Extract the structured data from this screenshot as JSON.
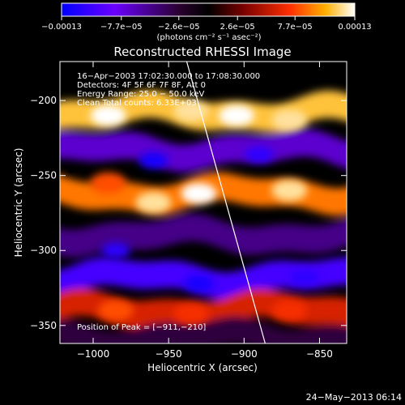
{
  "chart_data": {
    "type": "heatmap",
    "title": "Reconstructed RHESSI Image",
    "xlabel": "Heliocentric X (arcsec)",
    "ylabel": "Heliocentric Y (arcsec)",
    "xlim": [
      -1022,
      -832
    ],
    "ylim": [
      -362,
      -174
    ],
    "xticks": [
      -1000,
      -950,
      -900,
      -850
    ],
    "xtick_labels": [
      "−1000",
      "−950",
      "−900",
      "−850"
    ],
    "yticks": [
      -200,
      -250,
      -300,
      -350
    ],
    "ytick_labels": [
      "−200",
      "−250",
      "−300",
      "−350"
    ],
    "colorbar": {
      "min": -0.00013,
      "max": 0.00013,
      "ticks": [
        -0.00013,
        -7.7e-05,
        -2.6e-05,
        2.6e-05,
        7.7e-05,
        0.00013
      ],
      "tick_labels": [
        "−0.00013",
        "−7.7e−05",
        "−2.6e−05",
        "2.6e−05",
        "7.7e−05",
        "0.00013"
      ],
      "unit_label": "(photons cm⁻² s⁻¹ asec⁻²)",
      "colors": [
        "#0000ff",
        "#7a00ff",
        "#2a0033",
        "#000000",
        "#7a0000",
        "#ff3000",
        "#ffb000",
        "#ffffff"
      ]
    },
    "info_lines": [
      "16−Apr−2003 17:02:30.000 to 17:08:30.000",
      "Detectors: 4F 5F 6F 7F 8F, Att 0",
      "Energy Range: 25.0 − 50.0 keV",
      "Clean    Total counts: 6.33E+03"
    ],
    "peak_label": "Position of Peak = [−911,−210]",
    "peak": {
      "x": -911,
      "y": -210
    },
    "limb_line": [
      {
        "x": -938,
        "y": -174
      },
      {
        "x": -886,
        "y": -362
      }
    ],
    "marker": {
      "x": -1015,
      "y": -247
    },
    "bands": [
      {
        "y": -208,
        "value": 0.00011
      },
      {
        "y": -233,
        "value": -7e-05
      },
      {
        "y": -262,
        "value": 9e-05
      },
      {
        "y": -290,
        "value": -5e-05
      },
      {
        "y": -318,
        "value": -0.0001
      },
      {
        "y": -340,
        "value": 6e-05
      },
      {
        "y": -358,
        "value": -3e-05
      }
    ]
  },
  "footer": {
    "date": "24−May−2013 06:14"
  }
}
